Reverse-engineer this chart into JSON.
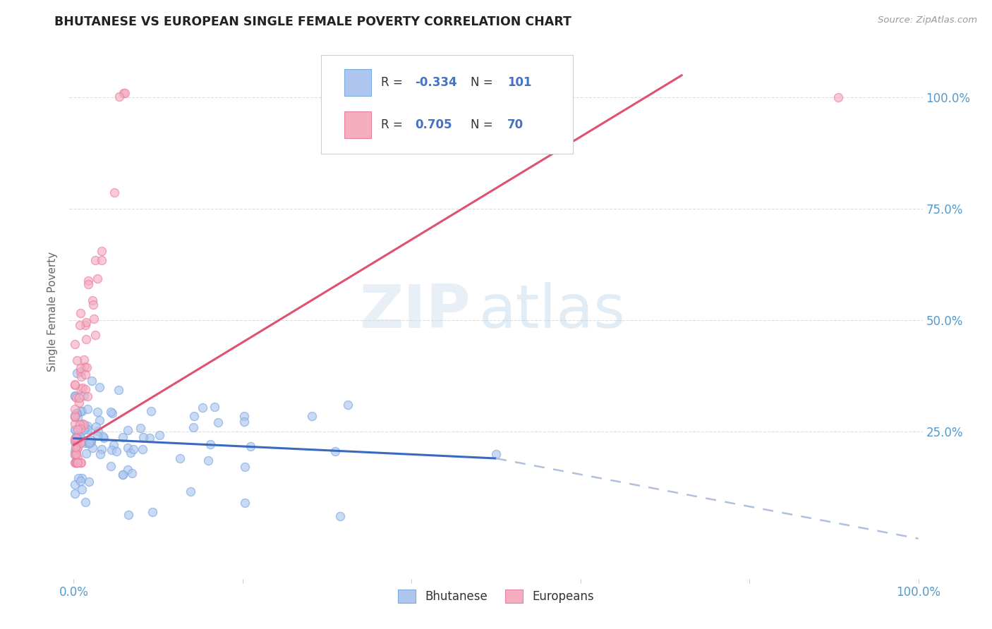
{
  "title": "BHUTANESE VS EUROPEAN SINGLE FEMALE POVERTY CORRELATION CHART",
  "source": "Source: ZipAtlas.com",
  "ylabel": "Single Female Poverty",
  "ytick_positions": [
    0.25,
    0.5,
    0.75,
    1.0
  ],
  "ytick_labels": [
    "25.0%",
    "50.0%",
    "75.0%",
    "100.0%"
  ],
  "blue_color": "#aec6ef",
  "blue_edge": "#7aaae0",
  "pink_color": "#f5adc0",
  "pink_edge": "#e880a0",
  "blue_line_color": "#3a6abf",
  "blue_dash_color": "#b0c0dd",
  "pink_line_color": "#e05070",
  "grid_color": "#dddddd",
  "title_color": "#222222",
  "source_color": "#999999",
  "axis_tick_color": "#5599cc",
  "watermark_zip": "ZIP",
  "watermark_atlas": "atlas",
  "watermark_color": "#d0e4f4",
  "legend_box_color": "#ffffff",
  "legend_edge_color": "#cccccc",
  "legend_text_color": "#333333",
  "legend_r_color": "#4472c4",
  "legend_n_color": "#4472c4",
  "R_blue": "-0.334",
  "N_blue": "101",
  "R_pink": "0.705",
  "N_pink": "70",
  "label_blue": "Bhutanese",
  "label_pink": "Europeans",
  "xlim": [
    -0.005,
    1.005
  ],
  "ylim": [
    -0.08,
    1.12
  ],
  "scatter_size": 75,
  "scatter_alpha": 0.65,
  "scatter_lw": 1.0,
  "trend_lw": 2.2,
  "seed": 42
}
